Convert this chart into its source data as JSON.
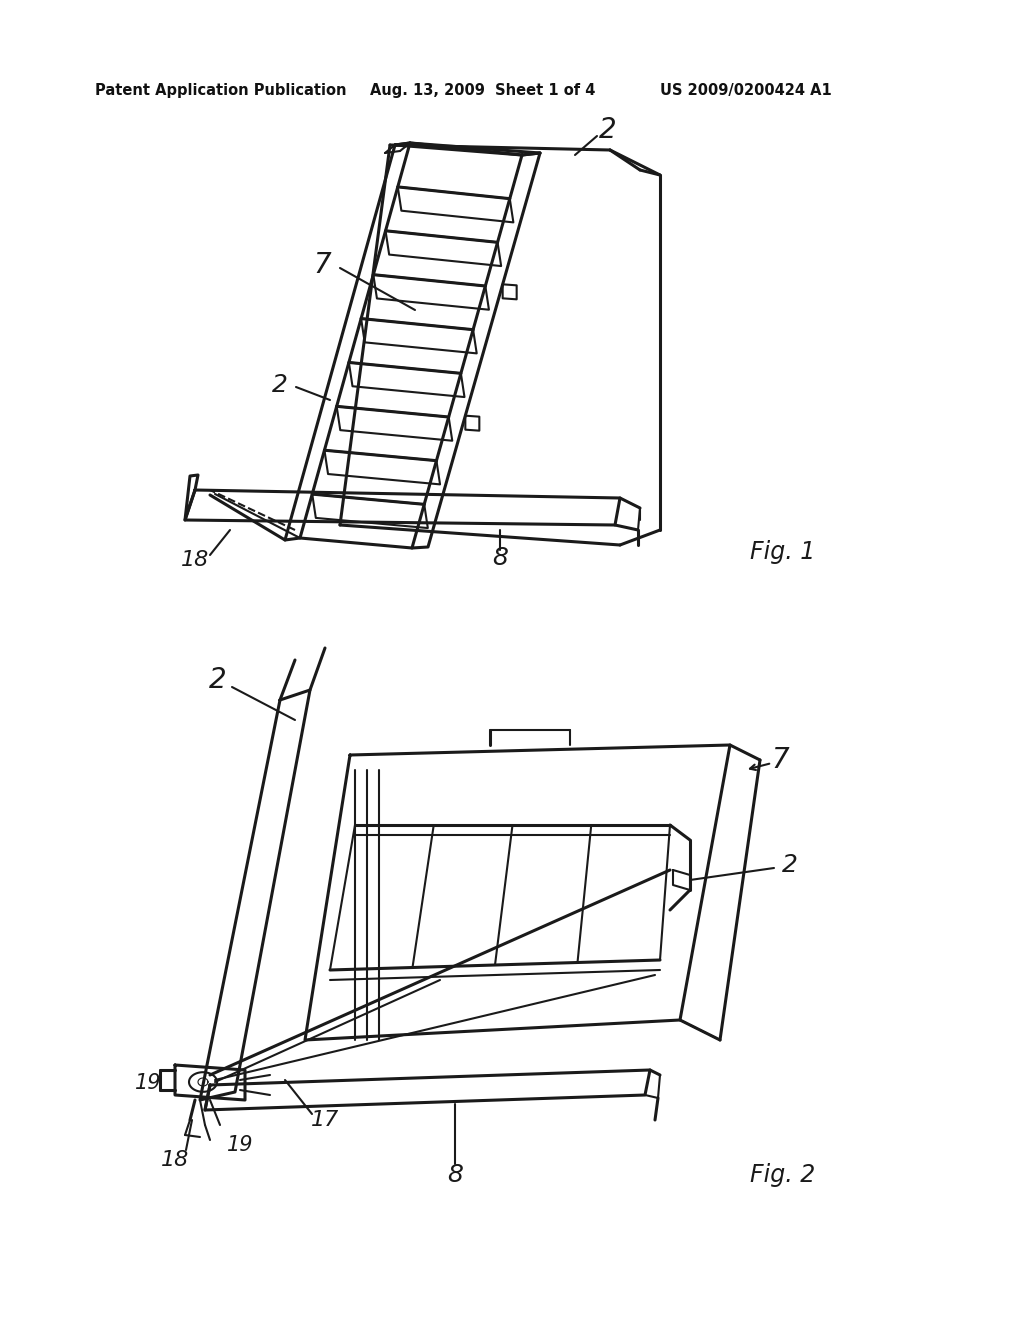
{
  "bg_color": "#ffffff",
  "header_text": "Patent Application Publication",
  "header_date": "Aug. 13, 2009  Sheet 1 of 4",
  "header_patent": "US 2009/0200424 A1",
  "line_color": "#1a1a1a",
  "line_width": 1.5,
  "fig1_label": "Fig. 1",
  "fig2_label": "Fig. 2"
}
